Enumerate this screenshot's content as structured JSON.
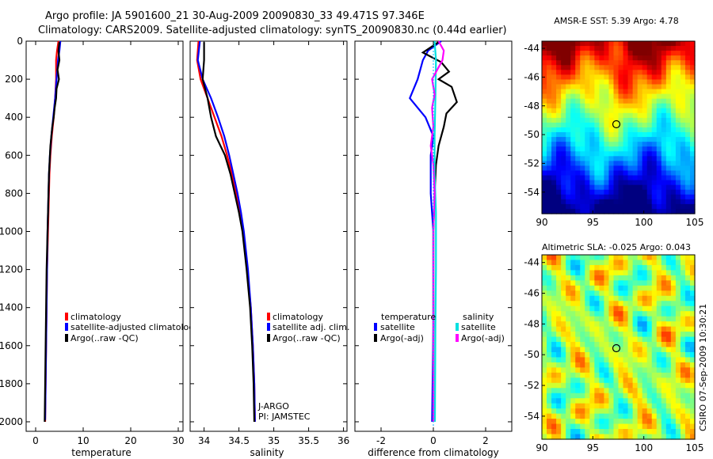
{
  "header": {
    "line1": "Argo profile: JA 5901600_21 30-Aug-2009 20090830_33 49.471S 97.346E",
    "line2": "Climatology: CARS2009. Satellite-adjusted climatology: synTS_20090830.nc (0.44d earlier)"
  },
  "credit": "CSIRO 07-Sep-2009 10:30:21",
  "colors": {
    "climatology": "#ff0000",
    "satellite": "#0000ff",
    "argo": "#000000",
    "sal_satellite": "#00e0e0",
    "sal_argo": "#ff00ff"
  },
  "chart_data": [
    {
      "id": "temperature",
      "type": "line",
      "xlabel": "temperature",
      "ylabel": "",
      "xlim": [
        -2,
        31
      ],
      "ylim": [
        2050,
        0
      ],
      "xticks": [
        0,
        10,
        20,
        30
      ],
      "yticks": [
        0,
        200,
        400,
        600,
        800,
        1000,
        1200,
        1400,
        1600,
        1800,
        2000
      ],
      "legend": [
        "climatology",
        "satellite-adjusted climatology",
        "Argo(..raw -QC)"
      ],
      "series": [
        {
          "name": "climatology",
          "color": "#ff0000",
          "points": [
            [
              4.8,
              0
            ],
            [
              4.5,
              50
            ],
            [
              4.3,
              100
            ],
            [
              4.3,
              200
            ],
            [
              4.1,
              300
            ],
            [
              3.8,
              400
            ],
            [
              3.4,
              500
            ],
            [
              3.1,
              600
            ],
            [
              2.9,
              700
            ],
            [
              2.8,
              800
            ],
            [
              2.6,
              1000
            ],
            [
              2.4,
              1200
            ],
            [
              2.3,
              1400
            ],
            [
              2.2,
              1600
            ],
            [
              2.1,
              1800
            ],
            [
              2.0,
              2000
            ]
          ]
        },
        {
          "name": "satellite-adjusted climatology",
          "color": "#0000ff",
          "points": [
            [
              5.2,
              0
            ],
            [
              5.0,
              50
            ],
            [
              4.7,
              100
            ],
            [
              4.4,
              200
            ],
            [
              4.1,
              300
            ],
            [
              3.7,
              400
            ],
            [
              3.3,
              500
            ],
            [
              3.0,
              600
            ],
            [
              2.8,
              700
            ],
            [
              2.7,
              800
            ],
            [
              2.5,
              1000
            ],
            [
              2.4,
              1200
            ],
            [
              2.3,
              1400
            ],
            [
              2.2,
              1600
            ],
            [
              2.1,
              1800
            ],
            [
              2.0,
              1990
            ]
          ]
        },
        {
          "name": "Argo(..raw -QC)",
          "color": "#000000",
          "points": [
            [
              5.0,
              5
            ],
            [
              4.8,
              50
            ],
            [
              5.0,
              100
            ],
            [
              4.6,
              150
            ],
            [
              4.9,
              200
            ],
            [
              4.4,
              250
            ],
            [
              4.3,
              300
            ],
            [
              4.0,
              350
            ],
            [
              3.8,
              400
            ],
            [
              3.5,
              450
            ],
            [
              3.3,
              500
            ],
            [
              3.1,
              550
            ],
            [
              3.0,
              600
            ],
            [
              2.8,
              700
            ],
            [
              2.7,
              800
            ],
            [
              2.5,
              1000
            ],
            [
              2.3,
              1200
            ],
            [
              2.2,
              1400
            ],
            [
              2.1,
              1600
            ],
            [
              2.0,
              1800
            ],
            [
              1.9,
              2000
            ]
          ]
        }
      ]
    },
    {
      "id": "salinity",
      "type": "line",
      "xlabel": "salinity",
      "ylabel": "",
      "xlim": [
        33.8,
        36.05
      ],
      "ylim": [
        2050,
        0
      ],
      "xticks": [
        34,
        34.5,
        35,
        35.5,
        36
      ],
      "legend": [
        "climatology",
        "satellite adj. clim.",
        "Argo(..raw -QC)"
      ],
      "annotation": [
        "J-ARGO",
        "PI: JAMSTEC"
      ],
      "series": [
        {
          "name": "climatology",
          "color": "#ff0000",
          "points": [
            [
              33.92,
              0
            ],
            [
              33.9,
              100
            ],
            [
              33.95,
              200
            ],
            [
              34.05,
              300
            ],
            [
              34.15,
              400
            ],
            [
              34.25,
              500
            ],
            [
              34.33,
              600
            ],
            [
              34.4,
              700
            ],
            [
              34.46,
              800
            ],
            [
              34.51,
              900
            ],
            [
              34.56,
              1000
            ],
            [
              34.62,
              1200
            ],
            [
              34.67,
              1400
            ],
            [
              34.7,
              1600
            ],
            [
              34.72,
              1800
            ],
            [
              34.73,
              2000
            ]
          ]
        },
        {
          "name": "satellite adj. clim.",
          "color": "#0000ff",
          "points": [
            [
              33.94,
              0
            ],
            [
              33.91,
              100
            ],
            [
              33.98,
              200
            ],
            [
              34.1,
              300
            ],
            [
              34.2,
              400
            ],
            [
              34.29,
              500
            ],
            [
              34.36,
              600
            ],
            [
              34.42,
              700
            ],
            [
              34.48,
              800
            ],
            [
              34.53,
              900
            ],
            [
              34.57,
              1000
            ],
            [
              34.63,
              1200
            ],
            [
              34.67,
              1400
            ],
            [
              34.7,
              1600
            ],
            [
              34.72,
              1800
            ],
            [
              34.73,
              2000
            ]
          ]
        },
        {
          "name": "Argo(..raw -QC)",
          "color": "#000000",
          "points": [
            [
              34.0,
              5
            ],
            [
              34.0,
              100
            ],
            [
              33.98,
              200
            ],
            [
              34.05,
              300
            ],
            [
              34.1,
              400
            ],
            [
              34.17,
              500
            ],
            [
              34.3,
              600
            ],
            [
              34.38,
              700
            ],
            [
              34.44,
              800
            ],
            [
              34.5,
              900
            ],
            [
              34.55,
              1000
            ],
            [
              34.61,
              1200
            ],
            [
              34.66,
              1400
            ],
            [
              34.69,
              1600
            ],
            [
              34.71,
              1800
            ],
            [
              34.72,
              2000
            ]
          ]
        }
      ]
    },
    {
      "id": "difference",
      "type": "line",
      "xlabel": "difference from climatology",
      "ylabel": "",
      "xlim": [
        -3,
        3
      ],
      "ylim": [
        2050,
        0
      ],
      "xticks": [
        -2,
        0,
        2
      ],
      "legend_titles": [
        "temperature",
        "salinity"
      ],
      "legend": [
        "satellite",
        "Argo(-adj)",
        "satellite",
        "Argo(-adj)"
      ],
      "series": [
        {
          "name": "temperature satellite",
          "color": "#0000ff",
          "points": [
            [
              0.3,
              0
            ],
            [
              -0.2,
              50
            ],
            [
              -0.4,
              100
            ],
            [
              -0.6,
              200
            ],
            [
              -0.9,
              300
            ],
            [
              -0.3,
              400
            ],
            [
              0.0,
              500
            ],
            [
              -0.1,
              600
            ],
            [
              -0.1,
              800
            ],
            [
              0.0,
              1000
            ],
            [
              0.0,
              1500
            ],
            [
              -0.05,
              2000
            ]
          ]
        },
        {
          "name": "temperature Argo(-adj)",
          "color": "#000000",
          "points": [
            [
              0.2,
              5
            ],
            [
              -0.4,
              60
            ],
            [
              0.3,
              110
            ],
            [
              0.6,
              160
            ],
            [
              0.2,
              200
            ],
            [
              0.7,
              240
            ],
            [
              0.9,
              320
            ],
            [
              0.5,
              380
            ],
            [
              0.4,
              450
            ],
            [
              0.2,
              550
            ],
            [
              0.1,
              650
            ],
            [
              0.05,
              800
            ],
            [
              0.0,
              1000
            ],
            [
              0.0,
              1500
            ],
            [
              0.0,
              2000
            ]
          ]
        },
        {
          "name": "salinity satellite",
          "color": "#00e0e0",
          "points": [
            [
              0.05,
              0
            ],
            [
              0.1,
              100
            ],
            [
              0.08,
              300
            ],
            [
              0.05,
              500
            ],
            [
              0.05,
              700
            ],
            [
              0.1,
              900
            ],
            [
              0.1,
              1200
            ],
            [
              0.08,
              1500
            ],
            [
              0.06,
              2000
            ]
          ]
        },
        {
          "name": "salinity Argo(-adj)",
          "color": "#ff00ff",
          "points": [
            [
              0.2,
              0
            ],
            [
              0.4,
              50
            ],
            [
              0.35,
              100
            ],
            [
              -0.05,
              200
            ],
            [
              0.05,
              280
            ],
            [
              -0.05,
              350
            ],
            [
              0.0,
              450
            ],
            [
              -0.1,
              550
            ],
            [
              0.0,
              650
            ],
            [
              0.05,
              800
            ],
            [
              0.0,
              1000
            ],
            [
              0.0,
              1400
            ],
            [
              0.0,
              2000
            ]
          ]
        }
      ]
    },
    {
      "id": "sst-map",
      "type": "heatmap",
      "title": "AMSR-E SST: 5.39 Argo: 4.78",
      "xlim": [
        90,
        105
      ],
      "ylim": [
        -55.5,
        -43.5
      ],
      "xticks": [
        90,
        95,
        100,
        105
      ],
      "yticks": [
        -44,
        -46,
        -48,
        -50,
        -52,
        -54
      ],
      "argo_point": [
        97.346,
        -49.471
      ]
    },
    {
      "id": "sla-map",
      "type": "heatmap",
      "title": "Altimetric SLA: -0.025 Argo: 0.043",
      "xlim": [
        90,
        105
      ],
      "ylim": [
        -55.5,
        -43.5
      ],
      "xticks": [
        90,
        95,
        100,
        105
      ],
      "yticks": [
        -44,
        -46,
        -48,
        -50,
        -52,
        -54
      ],
      "argo_point": [
        97.346,
        -49.471
      ]
    }
  ]
}
